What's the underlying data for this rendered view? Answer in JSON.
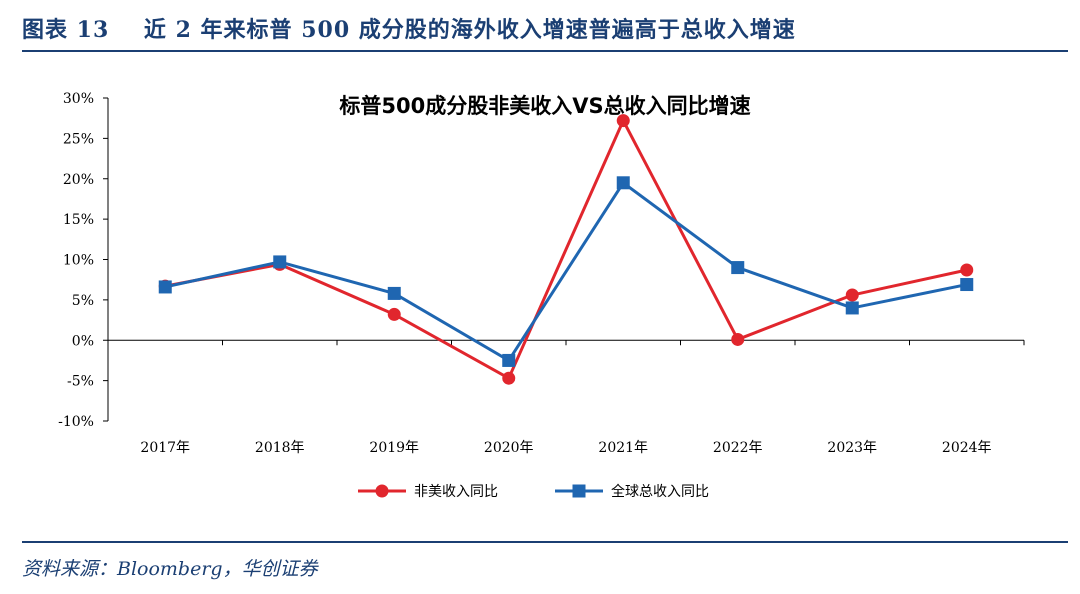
{
  "figure": {
    "label": "图表 13",
    "title": "近 2 年来标普 500 成分股的海外收入增速普遍高于总收入增速",
    "source": "资料来源：Bloomberg，华创证券"
  },
  "chart_data": {
    "type": "line",
    "title": "标普500成分股非美收入VS总收入同比增速",
    "categories": [
      "2017年",
      "2018年",
      "2019年",
      "2020年",
      "2021年",
      "2022年",
      "2023年",
      "2024年"
    ],
    "series": [
      {
        "name": "非美收入同比",
        "color": "#e1262d",
        "marker": "circle",
        "values": [
          6.7,
          9.4,
          3.2,
          -4.7,
          27.2,
          0.1,
          5.6,
          8.7
        ]
      },
      {
        "name": "全球总收入同比",
        "color": "#1f66b1",
        "marker": "square",
        "values": [
          6.6,
          9.7,
          5.8,
          -2.5,
          19.5,
          9.0,
          4.0,
          6.9
        ]
      }
    ],
    "ylim": [
      -10,
      30
    ],
    "yticks": [
      "-10%",
      "-5%",
      "0%",
      "5%",
      "10%",
      "15%",
      "20%",
      "25%",
      "30%"
    ],
    "ytick_values": [
      -10,
      -5,
      0,
      5,
      10,
      15,
      20,
      25,
      30
    ],
    "legend_position": "bottom",
    "grid": false
  }
}
